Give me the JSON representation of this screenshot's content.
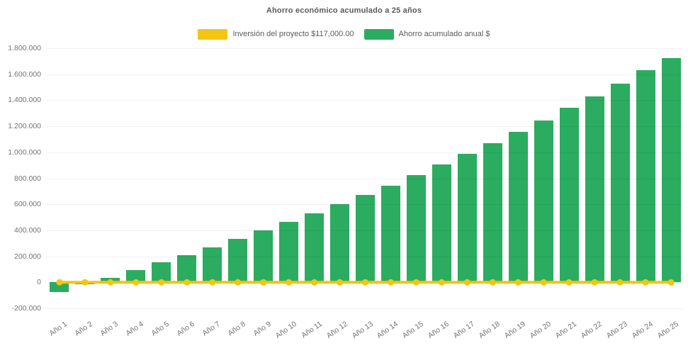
{
  "title": "Ahorro económico acumulado a 25 años",
  "legend": {
    "items": [
      {
        "label": "Inversión del proyecto $117,000.00",
        "color": "#f2c512",
        "series": "investment-line"
      },
      {
        "label": "Ahorro acumulado anual $",
        "color": "#2bac60",
        "series": "savings-bars"
      }
    ]
  },
  "colors": {
    "bar_green": "#2bac60",
    "line_yellow": "#f2c512",
    "title_text": "#5a5a5a",
    "axis_text": "#737373",
    "background": "#ffffff"
  },
  "chart_data": {
    "type": "bar",
    "title": "Ahorro económico acumulado a 25 años",
    "categories": [
      "Año 1",
      "Año 2",
      "Año 3",
      "Año 4",
      "Año 5",
      "Año 6",
      "Año 7",
      "Año 8",
      "Año 9",
      "Año 10",
      "Año 11",
      "Año 12",
      "Año 13",
      "Año 14",
      "Año 15",
      "Año 16",
      "Año 17",
      "Año 18",
      "Año 19",
      "Año 20",
      "Año 21",
      "Año 22",
      "Año 23",
      "Año 24",
      "Año 25"
    ],
    "series": [
      {
        "name": "Ahorro acumulado anual $",
        "type": "bar",
        "color": "#2bac60",
        "values": [
          -72000,
          -15000,
          36000,
          95000,
          152000,
          206000,
          266000,
          333000,
          402000,
          466000,
          530000,
          602000,
          672000,
          742000,
          822000,
          908000,
          986000,
          1069000,
          1158000,
          1245000,
          1340000,
          1432000,
          1530000,
          1630000,
          1723000
        ]
      },
      {
        "name": "Inversión del proyecto $117,000.00",
        "type": "line",
        "color": "#f2c512",
        "marker": "circle",
        "values": [
          0,
          0,
          0,
          0,
          0,
          0,
          0,
          0,
          0,
          0,
          0,
          0,
          0,
          0,
          0,
          0,
          0,
          0,
          0,
          0,
          0,
          0,
          0,
          0,
          0
        ]
      }
    ],
    "xlabel": "",
    "ylabel": "",
    "ylim": [
      -200000,
      1800000
    ],
    "yticks": [
      -200000,
      0,
      200000,
      400000,
      600000,
      800000,
      1000000,
      1200000,
      1400000,
      1600000,
      1800000
    ],
    "ytick_labels": [
      "-200.000",
      "0",
      "200.000",
      "400.000",
      "600.000",
      "800.000",
      "1.000.000",
      "1.200.000",
      "1.400.000",
      "1.600.000",
      "1.800.000"
    ],
    "grid": "subtle",
    "legend_position": "top"
  }
}
